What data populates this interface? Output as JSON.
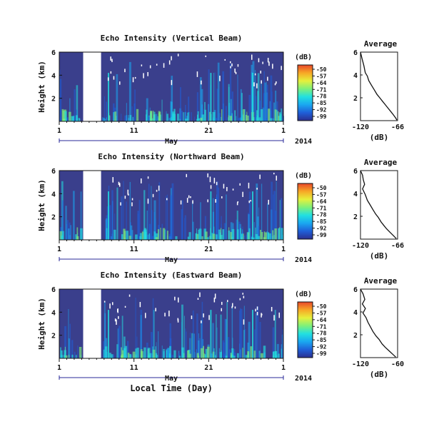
{
  "figure": {
    "xlabel": "Local Time (Day)",
    "colorbar_unit": "(dB)",
    "colorbar_ticks": [
      "-50",
      "-57",
      "-64",
      "-71",
      "-78",
      "-85",
      "-92",
      "-99"
    ],
    "colormap": [
      "#2b2f8f",
      "#1f5fd8",
      "#1aa7f0",
      "#22e0e0",
      "#7ef07a",
      "#e6f03c",
      "#f7a826",
      "#e8472a"
    ],
    "background_color": "#3a3f8c",
    "data_gap_color": "#ffffff"
  },
  "chart_data": [
    {
      "type": "heatmap",
      "title": "Echo Intensity (Vertical Beam)",
      "ylabel": "Height (km)",
      "ylim": [
        0,
        6
      ],
      "yticks": [
        "6",
        "4",
        "2"
      ],
      "xticks": [
        "1",
        "11",
        "21",
        "1"
      ],
      "xlim": [
        1,
        31
      ],
      "month_label": "May",
      "year_label": "2014",
      "data_gap_days": [
        4.2,
        6.6
      ],
      "colorbar_range_db": [
        -99,
        -50
      ],
      "average_profile": {
        "title": "Average",
        "xlabel": "(dB)",
        "xticks": [
          "-120",
          "-66"
        ],
        "xlim": [
          -120,
          -66
        ],
        "yticks": [
          "6",
          "4",
          "2"
        ],
        "ylim": [
          0,
          6
        ],
        "x": [
          -120,
          -118,
          -115,
          -113,
          -110,
          -108,
          -104,
          -100,
          -96,
          -92,
          -88,
          -84,
          -80,
          -76,
          -72,
          -69,
          -67
        ],
        "y": [
          6.0,
          5.5,
          4.8,
          4.2,
          3.9,
          3.5,
          3.1,
          2.7,
          2.3,
          2.0,
          1.7,
          1.4,
          1.1,
          0.8,
          0.5,
          0.25,
          0.05
        ]
      }
    },
    {
      "type": "heatmap",
      "title": "Echo Intensity (Northward Beam)",
      "ylabel": "Height (km)",
      "ylim": [
        0,
        6
      ],
      "yticks": [
        "6",
        "4",
        "2"
      ],
      "xticks": [
        "1",
        "11",
        "21",
        "1"
      ],
      "xlim": [
        1,
        31
      ],
      "month_label": "May",
      "year_label": "2014",
      "data_gap_days": [
        4.2,
        6.6
      ],
      "colorbar_range_db": [
        -99,
        -50
      ],
      "average_profile": {
        "title": "Average",
        "xlabel": "(dB)",
        "xticks": [
          "-120",
          "-66"
        ],
        "xlim": [
          -120,
          -66
        ],
        "yticks": [
          "6",
          "4",
          "2"
        ],
        "ylim": [
          0,
          6
        ],
        "x": [
          -120,
          -117,
          -116,
          -114,
          -117,
          -113,
          -110,
          -106,
          -102,
          -98,
          -94,
          -90,
          -86,
          -82,
          -77,
          -72,
          -68
        ],
        "y": [
          6.0,
          5.6,
          5.2,
          4.8,
          4.4,
          3.9,
          3.4,
          3.0,
          2.6,
          2.2,
          1.9,
          1.5,
          1.2,
          0.9,
          0.6,
          0.3,
          0.05
        ]
      }
    },
    {
      "type": "heatmap",
      "title": "Echo Intensity (Eastward Beam)",
      "ylabel": "Height (km)",
      "ylim": [
        0,
        6
      ],
      "yticks": [
        "6",
        "4",
        "2"
      ],
      "xticks": [
        "1",
        "11",
        "21",
        "1"
      ],
      "xlim": [
        1,
        31
      ],
      "month_label": "May",
      "year_label": "2014",
      "data_gap_days": [
        4.2,
        6.6
      ],
      "colorbar_range_db": [
        -99,
        -50
      ],
      "average_profile": {
        "title": "Average",
        "xlabel": "(dB)",
        "xticks": [
          "-120",
          "-60"
        ],
        "xlim": [
          -120,
          -60
        ],
        "yticks": [
          "6",
          "4",
          "2"
        ],
        "ylim": [
          0,
          6
        ],
        "x": [
          -120,
          -116,
          -113,
          -117,
          -112,
          -116,
          -111,
          -108,
          -104,
          -100,
          -95,
          -90,
          -85,
          -80,
          -74,
          -68,
          -63
        ],
        "y": [
          6.0,
          5.6,
          5.1,
          4.7,
          4.3,
          3.9,
          3.5,
          3.1,
          2.7,
          2.3,
          1.9,
          1.6,
          1.2,
          0.9,
          0.6,
          0.3,
          0.05
        ]
      }
    }
  ]
}
